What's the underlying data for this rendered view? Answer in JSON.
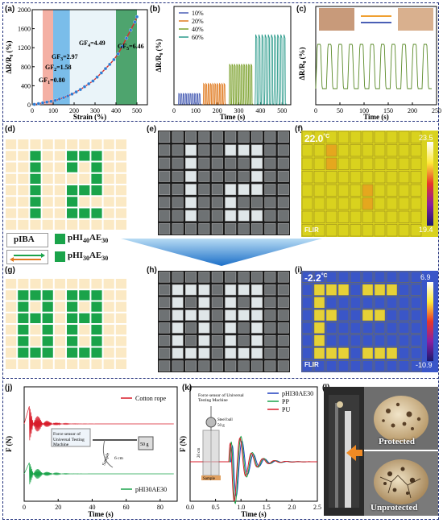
{
  "labels": {
    "a": "(a)",
    "b": "(b)",
    "c": "(c)",
    "d": "(d)",
    "e": "(e)",
    "f": "(f)",
    "g": "(g)",
    "h": "(h)",
    "i": "(i)",
    "j": "(j)",
    "k": "(k)",
    "l": "(l)"
  },
  "legend_d": {
    "pIBA": "pIBA",
    "pHI40": "pHI",
    "pHI40_sub1": "40",
    "pHI40_mid": "AE",
    "pHI40_sub2": "30",
    "pHI30": "pHI",
    "pHI30_sub1": "30",
    "pHI30_mid": "AE",
    "pHI30_sub2": "30"
  },
  "thermal_f": {
    "temp": "22.0",
    "unit": "°C",
    "max": "23.5",
    "min": "19.4",
    "brand": "FLIR"
  },
  "thermal_i": {
    "temp": "-2.2",
    "unit": "°C",
    "max": "6.9",
    "min": "-10.9",
    "brand": "FLIR"
  },
  "photo_l": {
    "protected": "Protected",
    "unprotected": "Unprotected"
  },
  "colors": {
    "green": "#1aa34a",
    "cream": "#fbe9c4",
    "navy": "#1f2e7a"
  },
  "chart_data": [
    {
      "panel": "a",
      "type": "scatter",
      "xlabel": "Strain (%)",
      "ylabel": "ΔR/R₀ (%)",
      "xticks": [
        0,
        100,
        200,
        300,
        400,
        500
      ],
      "yticks": [
        0,
        400,
        800,
        1200,
        1600,
        2000
      ],
      "xlim": [
        0,
        550
      ],
      "ylim": [
        0,
        2000
      ],
      "x": [
        10,
        30,
        50,
        70,
        90,
        110,
        130,
        150,
        170,
        190,
        210,
        230,
        250,
        270,
        290,
        310,
        330,
        350,
        370,
        390,
        410,
        430,
        450,
        470,
        490,
        500
      ],
      "y": [
        8,
        24,
        40,
        56,
        72,
        90,
        120,
        150,
        185,
        225,
        270,
        320,
        380,
        440,
        500,
        580,
        670,
        760,
        850,
        950,
        1070,
        1230,
        1400,
        1570,
        1740,
        1850
      ],
      "annotations": [
        {
          "text": "GF",
          "sub": "1",
          "val": "=0.80"
        },
        {
          "text": "GF",
          "sub": "2",
          "val": "=1.58"
        },
        {
          "text": "GF",
          "sub": "3",
          "val": "=2.97"
        },
        {
          "text": "GF",
          "sub": "4",
          "val": "=4.49"
        },
        {
          "text": "GF",
          "sub": "5",
          "val": "=6.46"
        }
      ]
    },
    {
      "panel": "b",
      "type": "line",
      "xlabel": "Time (s)",
      "ylabel": "ΔR/R₀ (%)",
      "xticks": [
        0,
        100,
        200,
        300,
        400,
        500
      ],
      "xlim": [
        0,
        540
      ],
      "ylim": [
        0,
        70
      ],
      "series": [
        {
          "name": "10%",
          "color": "#4a5fb5",
          "start": 20,
          "end": 125,
          "amp": 8
        },
        {
          "name": "20%",
          "color": "#e07a1f",
          "start": 135,
          "end": 240,
          "amp": 15
        },
        {
          "name": "40%",
          "color": "#7aa02a",
          "start": 255,
          "end": 365,
          "amp": 29
        },
        {
          "name": "60%",
          "color": "#2a9a8a",
          "start": 375,
          "end": 520,
          "amp": 50
        }
      ]
    },
    {
      "panel": "c",
      "type": "line",
      "xlabel": "Time (s)",
      "ylabel": "ΔR/R₀ (%)",
      "xticks": [
        0,
        50,
        100,
        150,
        200,
        250
      ],
      "xlim": [
        0,
        250
      ],
      "period": 22,
      "color": "#5a8a28"
    },
    {
      "panel": "j",
      "type": "line",
      "xlabel": "Time (s)",
      "ylabel": "F (N)",
      "xticks": [
        0,
        20,
        40,
        60,
        80
      ],
      "xlim": [
        0,
        90
      ],
      "series": [
        {
          "name": "Cotton rope",
          "color": "#d81b29"
        },
        {
          "name": "pHI30AE30",
          "color": "#1aa34a"
        }
      ],
      "inset": {
        "l1": "Force sensor of",
        "l2": "Universal Testing",
        "l3": "Machine",
        "mass": "50 g",
        "sample": "Sample",
        "len": "6 cm"
      }
    },
    {
      "panel": "k",
      "type": "line",
      "xlabel": "Time (s)",
      "ylabel": "F (N)",
      "xticks": [
        0.0,
        0.5,
        1.0,
        1.5,
        2.0,
        2.5
      ],
      "xlim": [
        0,
        2.5
      ],
      "series": [
        {
          "name": "pHI30AE30",
          "color": "#1f3fbf"
        },
        {
          "name": "PP",
          "color": "#1aa34a"
        },
        {
          "name": "PU",
          "color": "#d81b29"
        }
      ],
      "inset": {
        "l1": "Force sensor of Universal",
        "l2": "Testing Machine",
        "ball": "Steel ball",
        "mass": "50 g",
        "height": "20 cm",
        "sample": "Sample"
      }
    }
  ]
}
